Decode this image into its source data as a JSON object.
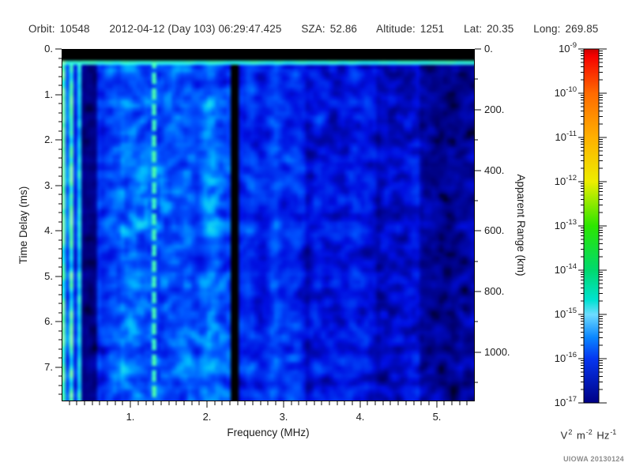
{
  "header": {
    "items": [
      {
        "label": "Orbit:",
        "value": "10548"
      },
      {
        "label": "",
        "value": "2012-04-12 (Day 103) 06:29:47.425"
      },
      {
        "label": "SZA:",
        "value": "52.86"
      },
      {
        "label": "Altitude:",
        "value": "1251"
      },
      {
        "label": "Lat:",
        "value": "20.35"
      },
      {
        "label": "Long:",
        "value": "269.85"
      }
    ]
  },
  "footer": {
    "credit": "UIOWA 20130124"
  },
  "chart_data": {
    "type": "heatmap",
    "title": "",
    "x_axis": {
      "label": "Frequency (MHz)",
      "range": [
        0.1,
        5.5
      ],
      "major_ticks": [
        1,
        2,
        3,
        4,
        5
      ],
      "major_tick_labels": [
        "1.",
        "2.",
        "3.",
        "4.",
        "5."
      ],
      "minor_step": 0.1
    },
    "y_axis": {
      "label": "Time Delay (ms)",
      "range": [
        0,
        7.75
      ],
      "major_ticks": [
        0,
        1,
        2,
        3,
        4,
        5,
        6,
        7
      ],
      "major_tick_labels": [
        "0.",
        "1.",
        "2.",
        "3.",
        "4.",
        "5.",
        "6.",
        "7."
      ],
      "minor_step": 0.2,
      "direction": "downward"
    },
    "y2_axis": {
      "label": "Apparent Range (km)",
      "range": [
        0,
        1162
      ],
      "major_ticks": [
        0,
        200,
        400,
        600,
        800,
        1000
      ],
      "major_tick_labels": [
        "0.",
        "200.",
        "400.",
        "600.",
        "800.",
        "1000."
      ],
      "minor_step": 100
    },
    "colorbar": {
      "scale": "log",
      "base_label": "10",
      "exponents": [
        "-9",
        "-10",
        "-11",
        "-12",
        "-13",
        "-14",
        "-15",
        "-16",
        "-17"
      ],
      "unit_parts": [
        {
          "base": "V",
          "sup": "2"
        },
        {
          "base": "m",
          "sup": "-2"
        },
        {
          "base": "Hz",
          "sup": "-1"
        }
      ],
      "gradient": [
        [
          0.0,
          "#c80000"
        ],
        [
          0.02,
          "#f60000"
        ],
        [
          0.125,
          "#ff6a00"
        ],
        [
          0.25,
          "#ffb000"
        ],
        [
          0.375,
          "#eded00"
        ],
        [
          0.5,
          "#2ce600"
        ],
        [
          0.625,
          "#00d96e"
        ],
        [
          0.71,
          "#00e2d2"
        ],
        [
          0.75,
          "#6edcff"
        ],
        [
          0.815,
          "#0a86ff"
        ],
        [
          0.875,
          "#0536f0"
        ],
        [
          1.0,
          "#000085"
        ]
      ]
    },
    "spectrogram": {
      "description": "AIS ionogram: blue noise field, brightest (cyan/green) below 2.3 MHz, black dropout stripe at 2.36 MHz, bright dashed harmonic line at 1.32 MHz, bright cyan stripes 0.1-0.35 MHz, dark band 0.36-0.56 MHz, increasingly black with faint blue blobs above 4 MHz, black calibration band with bright cyan line at top",
      "noise_seed": 20130124,
      "grid": {
        "cols": 105,
        "rows": 90
      },
      "colormap": [
        [
          0.0,
          "#000000"
        ],
        [
          0.1,
          "#000000"
        ],
        [
          0.16,
          "#000078"
        ],
        [
          0.3,
          "#000ee0"
        ],
        [
          0.46,
          "#0054ff"
        ],
        [
          0.62,
          "#00b4ff"
        ],
        [
          0.78,
          "#2af0e6"
        ],
        [
          0.9,
          "#55ff9e"
        ],
        [
          1.0,
          "#8cffb4"
        ]
      ],
      "bands": [
        [
          0.1,
          0.36,
          0.7,
          0.35
        ],
        [
          0.36,
          0.56,
          0.24,
          0.35
        ],
        [
          0.56,
          0.85,
          0.46,
          0.42
        ],
        [
          0.85,
          2.3,
          0.52,
          0.45
        ],
        [
          2.3,
          2.42,
          0.03,
          0.05
        ],
        [
          2.42,
          3.3,
          0.43,
          0.42
        ],
        [
          3.3,
          4.2,
          0.35,
          0.48
        ],
        [
          4.2,
          4.8,
          0.27,
          0.55
        ],
        [
          4.8,
          5.5,
          0.21,
          0.6
        ]
      ],
      "stripe_pattern": [
        1.55,
        0.75,
        1.4,
        0.6,
        1.25
      ],
      "features": {
        "calibration_band_ms": [
          0,
          0.24
        ],
        "bright_line_ms": [
          0.24,
          0.34
        ],
        "dashed_line_mhz": 1.32,
        "blackout_line_mhz": 2.36
      }
    }
  }
}
